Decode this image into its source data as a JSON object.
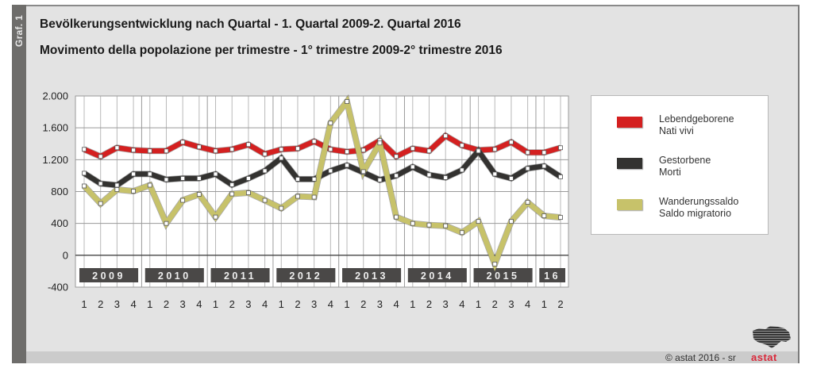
{
  "figure_label": "Graf. 1",
  "title_de": "Bevölkerungsentwicklung nach Quartal - 1. Quartal 2009-2. Quartal 2016",
  "title_it": "Movimento della popolazione per trimestre - 1° trimestre 2009-2° trimestre 2016",
  "legend": [
    {
      "line1": "Lebendgeborene",
      "line2": "Nati vivi",
      "color": "#d42020"
    },
    {
      "line1": "Gestorbene",
      "line2": "Morti",
      "color": "#333230"
    },
    {
      "line1": "Wanderungssaldo",
      "line2": "Saldo migratorio",
      "color": "#c7c26a"
    }
  ],
  "footer": {
    "copyright": "© astat 2016 - sr",
    "logo": "astat"
  },
  "chart_data": {
    "type": "line",
    "title": "Bevölkerungsentwicklung nach Quartal - 1. Quartal 2009-2. Quartal 2016",
    "subtitle": "Movimento della popolazione per trimestre - 1° trimestre 2009-2° trimestre 2016",
    "xlabel": "",
    "ylabel": "",
    "ylim": [
      -400,
      2000
    ],
    "yticks": [
      2000,
      1600,
      1200,
      800,
      400,
      0,
      -400
    ],
    "ytick_labels": [
      "2.000",
      "1.600",
      "1.200",
      "800",
      "400",
      "0",
      "-400"
    ],
    "grid": true,
    "legend_position": "right",
    "year_groups": [
      {
        "label": "2009",
        "quarters": 4
      },
      {
        "label": "2010",
        "quarters": 4
      },
      {
        "label": "2011",
        "quarters": 4
      },
      {
        "label": "2012",
        "quarters": 4
      },
      {
        "label": "2013",
        "quarters": 4
      },
      {
        "label": "2014",
        "quarters": 4
      },
      {
        "label": "2015",
        "quarters": 4
      },
      {
        "label": "16",
        "quarters": 2
      }
    ],
    "categories": [
      "1",
      "2",
      "3",
      "4",
      "1",
      "2",
      "3",
      "4",
      "1",
      "2",
      "3",
      "4",
      "1",
      "2",
      "3",
      "4",
      "1",
      "2",
      "3",
      "4",
      "1",
      "2",
      "3",
      "4",
      "1",
      "2",
      "3",
      "4",
      "1",
      "2"
    ],
    "series": [
      {
        "name": "Lebendgeborene / Nati vivi",
        "color": "#d42020",
        "values": [
          1330,
          1240,
          1350,
          1320,
          1310,
          1310,
          1420,
          1360,
          1310,
          1330,
          1390,
          1270,
          1330,
          1340,
          1430,
          1330,
          1300,
          1320,
          1440,
          1240,
          1340,
          1310,
          1500,
          1380,
          1320,
          1330,
          1420,
          1290,
          1290,
          1350
        ]
      },
      {
        "name": "Gestorbene / Morti",
        "color": "#333230",
        "values": [
          1030,
          900,
          880,
          1020,
          1020,
          950,
          965,
          965,
          1020,
          885,
          965,
          1060,
          1220,
          955,
          955,
          1060,
          1130,
          1040,
          945,
          1000,
          1110,
          1010,
          975,
          1070,
          1310,
          1020,
          965,
          1090,
          1120,
          985
        ]
      },
      {
        "name": "Wanderungssaldo / Saldo migratorio",
        "color": "#c7c26a",
        "values": [
          870,
          650,
          825,
          805,
          880,
          400,
          690,
          765,
          480,
          770,
          785,
          690,
          590,
          740,
          730,
          1660,
          1930,
          1050,
          1410,
          480,
          400,
          380,
          370,
          285,
          425,
          -110,
          425,
          665,
          495,
          475
        ]
      }
    ]
  }
}
